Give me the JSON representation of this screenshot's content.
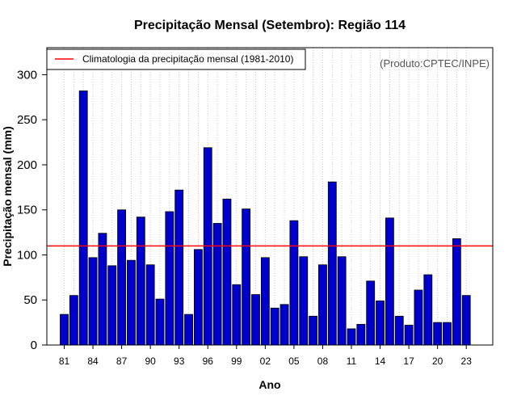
{
  "chart_data": {
    "type": "bar",
    "title": "Precipitação Mensal (Setembro): Região 114",
    "xlabel": "Ano",
    "ylabel": "Precipitação mensal (mm)",
    "credit": "(Produto:CPTEC/INPE)",
    "ylim": [
      0,
      330
    ],
    "yticks": [
      0,
      50,
      100,
      150,
      200,
      250,
      300
    ],
    "categories": [
      "81",
      "82",
      "83",
      "84",
      "85",
      "86",
      "87",
      "88",
      "89",
      "90",
      "91",
      "92",
      "93",
      "94",
      "95",
      "96",
      "97",
      "98",
      "99",
      "00",
      "01",
      "02",
      "03",
      "04",
      "05",
      "06",
      "07",
      "08",
      "09",
      "10",
      "11",
      "12",
      "13",
      "14",
      "15",
      "16",
      "17",
      "18",
      "19",
      "20",
      "21",
      "22",
      "23"
    ],
    "xtick_labels": [
      "81",
      "84",
      "87",
      "90",
      "93",
      "96",
      "99",
      "02",
      "05",
      "08",
      "11",
      "14",
      "17",
      "20",
      "23"
    ],
    "values": [
      34,
      55,
      282,
      97,
      124,
      88,
      150,
      94,
      142,
      89,
      51,
      148,
      172,
      34,
      106,
      219,
      135,
      162,
      67,
      151,
      56,
      97,
      41,
      45,
      138,
      98,
      32,
      89,
      181,
      98,
      18,
      23,
      71,
      49,
      141,
      32,
      22,
      61,
      78,
      25,
      25,
      118,
      55
    ],
    "bar_color": "#0000cc",
    "climatology": {
      "label": "Climatologia da precipitação mensal (1981-2010)",
      "value": 110,
      "color": "#ff0000"
    },
    "grid": "vertical dotted",
    "legend_position": "top-left"
  }
}
